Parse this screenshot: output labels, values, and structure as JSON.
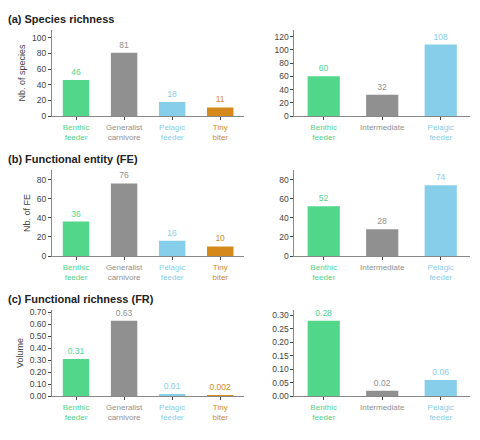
{
  "chart_data": [
    {
      "type": "bar",
      "title": "(a) Species richness",
      "y_label": "Nb. of species",
      "categories": [
        "Benthic\nfeeder",
        "Generalist\ncarnivore",
        "Pelagic\nfeeder",
        "Tiny\nbiter"
      ],
      "values": [
        46,
        81,
        18,
        11
      ],
      "colors": [
        "#52d68a",
        "#909090",
        "#87ceeb",
        "#d4891a"
      ],
      "ylim": [
        0,
        110
      ],
      "yticks": [
        0,
        20,
        40,
        60,
        80,
        100
      ],
      "grid": false,
      "data_labels": true
    },
    {
      "type": "bar",
      "categories": [
        "Benthic\nfeeder",
        "Intermediate",
        "Pelagic\nfeeder"
      ],
      "values": [
        60,
        32,
        108
      ],
      "colors": [
        "#52d68a",
        "#909090",
        "#87ceeb"
      ],
      "ylim": [
        0,
        130
      ],
      "yticks": [
        0,
        20,
        40,
        60,
        80,
        100,
        120
      ],
      "grid": false,
      "data_labels": true
    },
    {
      "type": "bar",
      "title": "(b) Functional entity (FE)",
      "y_label": "Nb. of FE",
      "categories": [
        "Benthic\nfeeder",
        "Generalist\ncarnivore",
        "Pelagic\nfeeder",
        "Tiny\nbiter"
      ],
      "values": [
        36,
        76,
        16,
        10
      ],
      "colors": [
        "#52d68a",
        "#909090",
        "#87ceeb",
        "#d4891a"
      ],
      "ylim": [
        0,
        90
      ],
      "yticks": [
        0,
        20,
        40,
        60,
        80
      ],
      "grid": false,
      "data_labels": true
    },
    {
      "type": "bar",
      "categories": [
        "Benthic\nfeeder",
        "Intermediate",
        "Pelagic\nfeeder"
      ],
      "values": [
        52,
        28,
        74
      ],
      "colors": [
        "#52d68a",
        "#909090",
        "#87ceeb"
      ],
      "ylim": [
        0,
        90
      ],
      "yticks": [
        0,
        20,
        40,
        60,
        80
      ],
      "grid": false,
      "data_labels": true
    },
    {
      "type": "bar",
      "title": "(c) Functional richness (FR)",
      "y_label": "Volume",
      "categories": [
        "Benthic\nfeeder",
        "Generalist\ncarnivore",
        "Pelagic\nfeeder",
        "Tiny\nbiter"
      ],
      "values": [
        0.31,
        0.63,
        0.01,
        0.002
      ],
      "colors": [
        "#52d68a",
        "#909090",
        "#87ceeb",
        "#d4891a"
      ],
      "ylim": [
        0,
        0.72
      ],
      "yticks": [
        {
          "value": 0.0,
          "label": "0.00"
        },
        {
          "value": 0.1,
          "label": "0.10"
        },
        {
          "value": 0.2,
          "label": "0.20"
        },
        {
          "value": 0.3,
          "label": "0.30"
        },
        {
          "value": 0.4,
          "label": "0.40"
        },
        {
          "value": 0.5,
          "label": "0.50"
        },
        {
          "value": 0.6,
          "label": "0.60"
        },
        {
          "value": 0.7,
          "label": "0.70"
        }
      ],
      "grid": false,
      "data_labels": true
    },
    {
      "type": "bar",
      "categories": [
        "Benthic\nfeeder",
        "Intermediate",
        "Pelagic\nfeeder"
      ],
      "values": [
        0.28,
        0.02,
        0.06
      ],
      "colors": [
        "#52d68a",
        "#909090",
        "#87ceeb"
      ],
      "ylim": [
        0,
        0.32
      ],
      "yticks": [
        {
          "value": 0.0,
          "label": "0.00"
        },
        0.05,
        {
          "value": 0.1,
          "label": "0.10"
        },
        0.15,
        {
          "value": 0.2,
          "label": "0.20"
        },
        0.25,
        {
          "value": 0.3,
          "label": "0.30"
        }
      ],
      "grid": false,
      "data_labels": true
    }
  ]
}
